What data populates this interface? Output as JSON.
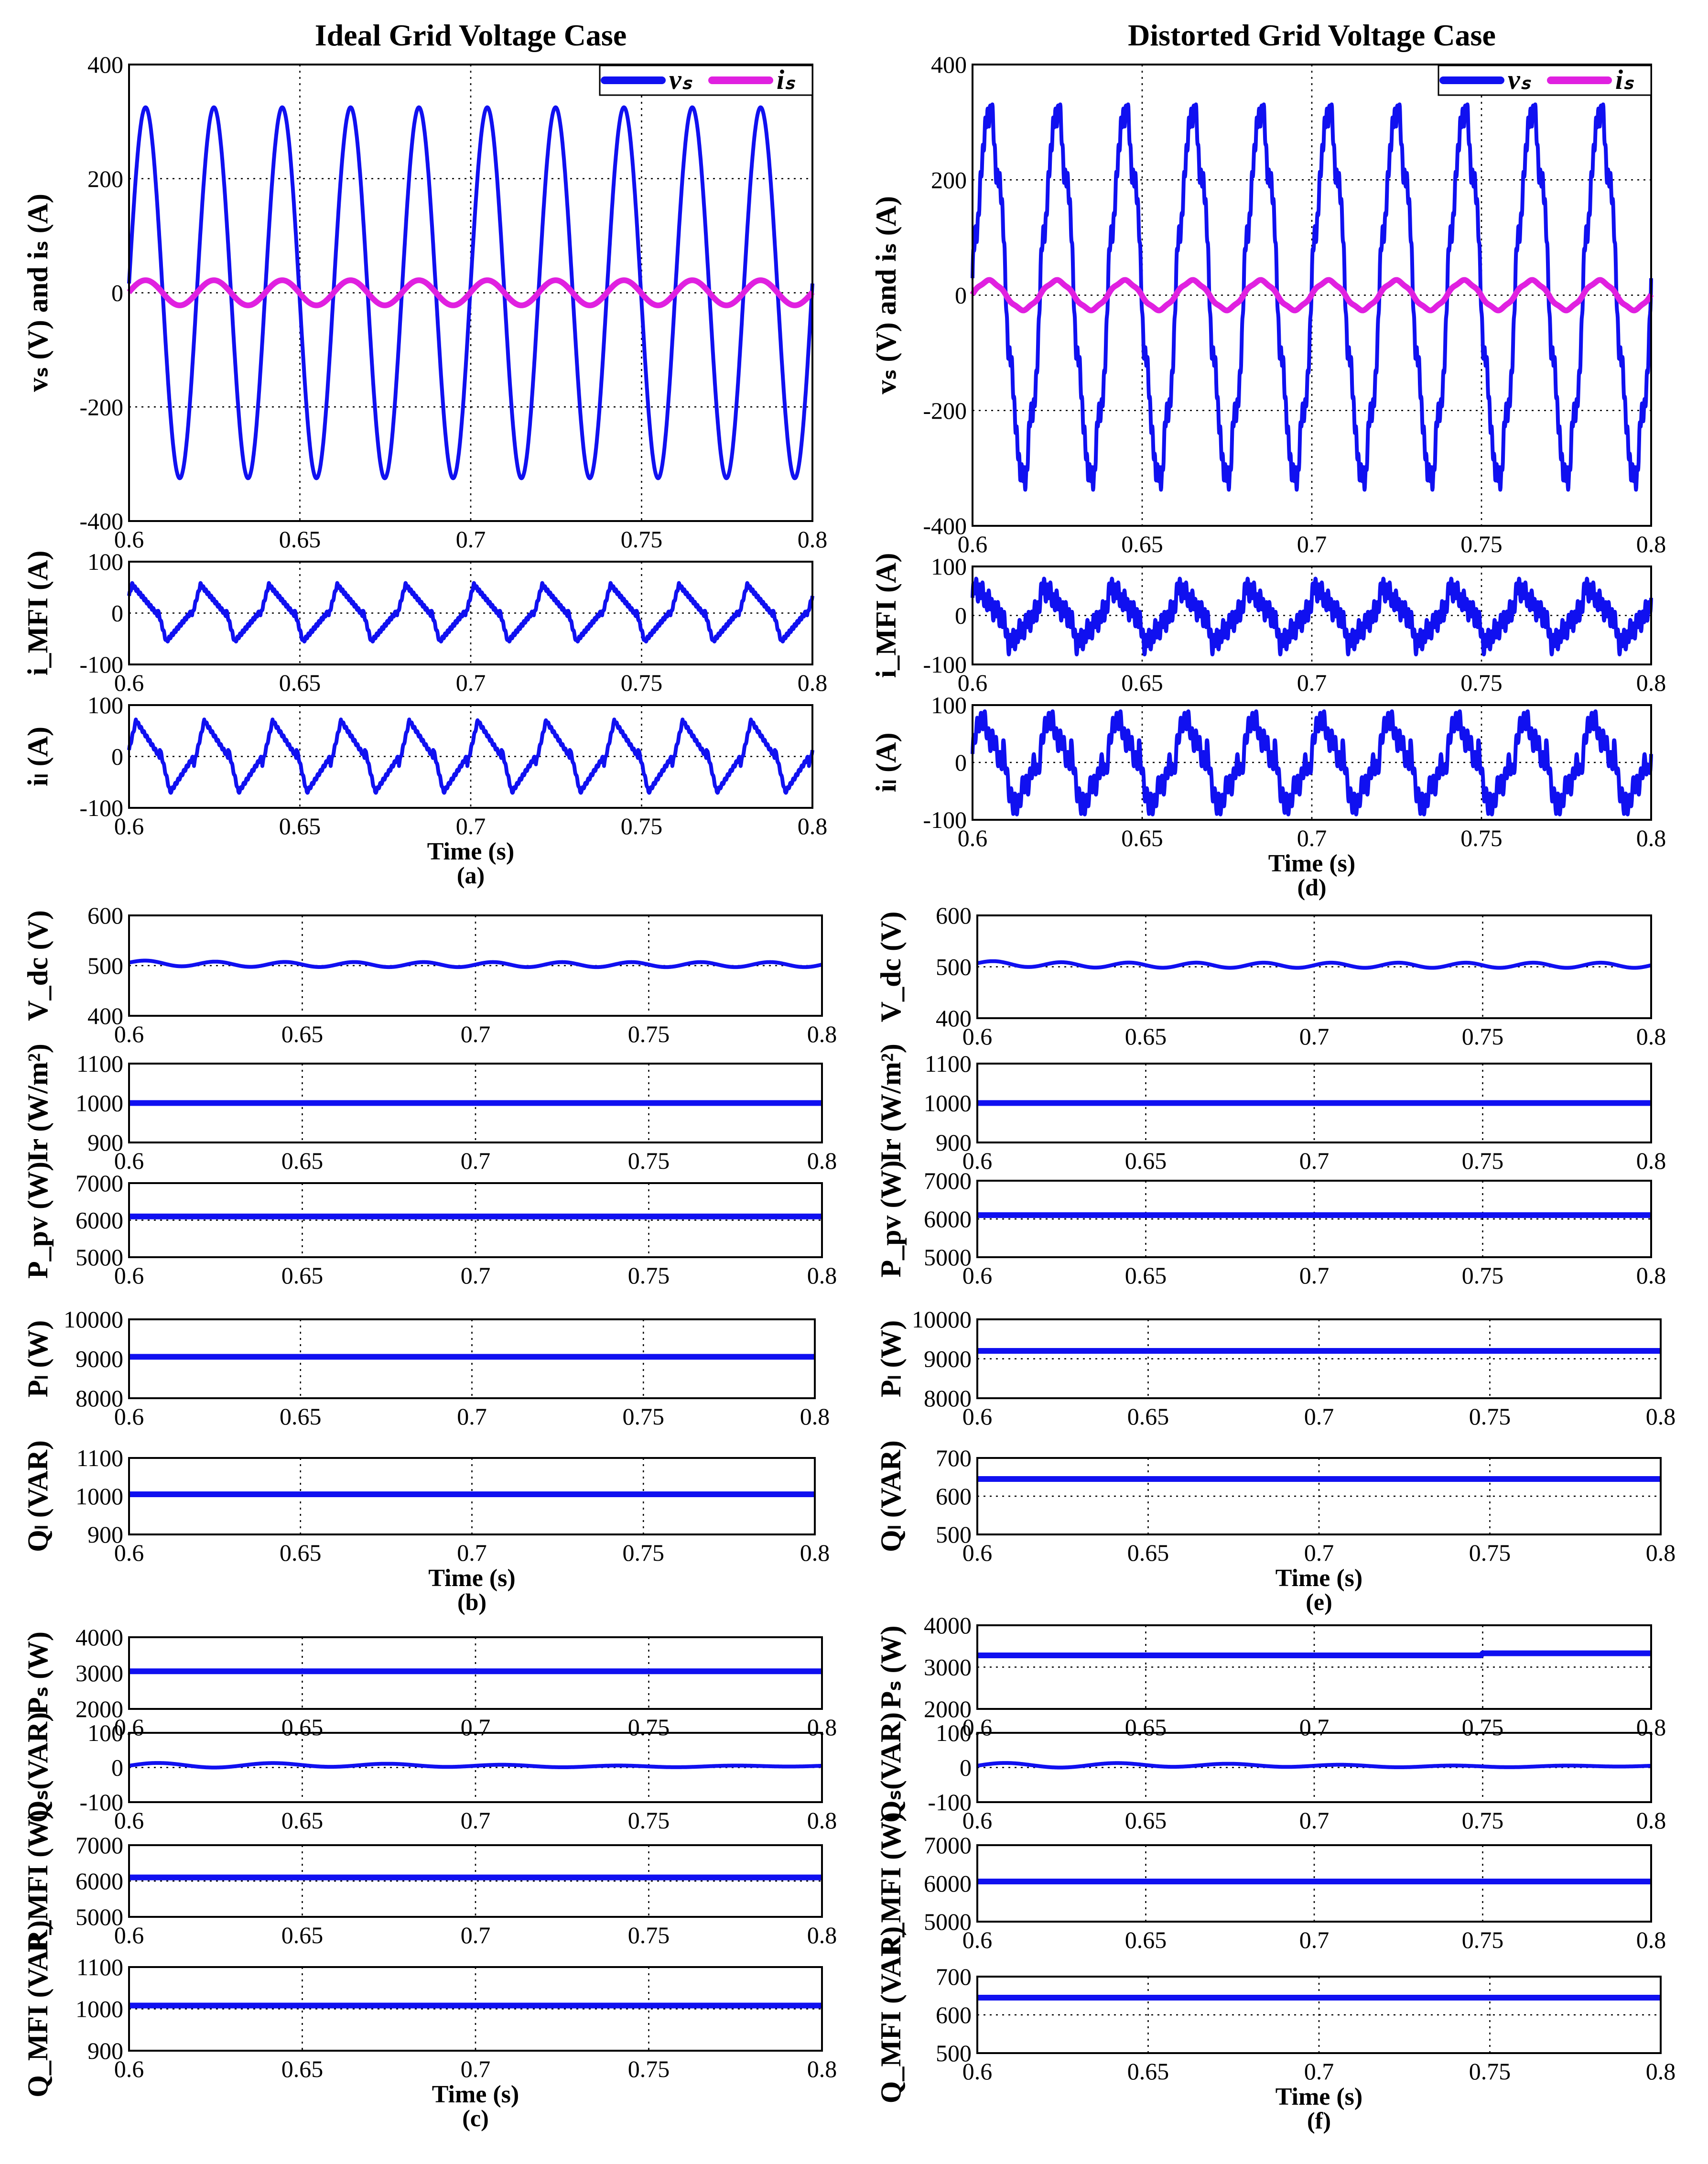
{
  "colors": {
    "vs": "#1010f0",
    "is": "#e020e0",
    "trace": "#1010f0",
    "axis": "#000000"
  },
  "chart_data": [
    {
      "id": "a1",
      "type": "line",
      "column": "left",
      "title": "Ideal Grid Voltage Case",
      "ylabel": "vₛ (V) and iₛ (A)",
      "xlabel": "",
      "caption": "",
      "xlim": [
        0.6,
        0.8
      ],
      "ylim": [
        -400,
        400
      ],
      "xticks": [
        "0.6",
        "0.65",
        "0.7",
        "0.75",
        "0.8"
      ],
      "yticks": [
        "400",
        "200",
        "0",
        "-200",
        "-400"
      ],
      "legend": [
        "vₛ",
        "iₛ"
      ],
      "series": [
        {
          "name": "vₛ",
          "kind": "sine",
          "amplitude": 325,
          "distortion": "none"
        },
        {
          "name": "iₛ",
          "kind": "sine",
          "amplitude": 22,
          "distortion": "none"
        }
      ]
    },
    {
      "id": "a2",
      "type": "line",
      "column": "left",
      "ylabel": "i_MFI (A)",
      "xlim": [
        0.6,
        0.8
      ],
      "ylim": [
        -100,
        100
      ],
      "xticks": [
        "0.6",
        "0.65",
        "0.7",
        "0.75",
        "0.8"
      ],
      "yticks": [
        "100",
        "0",
        "-100"
      ],
      "series": [
        {
          "name": "i_MFI",
          "kind": "inverter current",
          "amplitude": 65,
          "distortion": "low"
        }
      ]
    },
    {
      "id": "a3",
      "type": "line",
      "column": "left",
      "ylabel": "iₗ (A)",
      "xlabel": "Time (s)",
      "caption": "(a)",
      "xlim": [
        0.6,
        0.8
      ],
      "ylim": [
        -100,
        100
      ],
      "xticks": [
        "0.6",
        "0.65",
        "0.7",
        "0.75",
        "0.8"
      ],
      "yticks": [
        "100",
        "0",
        "-100"
      ],
      "series": [
        {
          "name": "iₗ",
          "kind": "load current",
          "amplitude": 78,
          "distortion": "low"
        }
      ]
    },
    {
      "id": "b1",
      "type": "line",
      "column": "left",
      "ylabel": "V_dc (V)",
      "xlim": [
        0.6,
        0.8
      ],
      "ylim": [
        400,
        600
      ],
      "xticks": [
        "0.6",
        "0.65",
        "0.7",
        "0.75",
        "0.8"
      ],
      "yticks": [
        "600",
        "500",
        "400"
      ],
      "series": [
        {
          "name": "V_dc",
          "kind": "ripple",
          "value": 502,
          "ripple": 5
        }
      ]
    },
    {
      "id": "b2",
      "type": "line",
      "column": "left",
      "ylabel": "Ir (W/m²)",
      "xlim": [
        0.6,
        0.8
      ],
      "ylim": [
        900,
        1100
      ],
      "xticks": [
        "0.6",
        "0.65",
        "0.7",
        "0.75",
        "0.8"
      ],
      "yticks": [
        "1100",
        "1000",
        "900"
      ],
      "series": [
        {
          "name": "Ir",
          "kind": "constant",
          "value": 1000
        }
      ]
    },
    {
      "id": "b3",
      "type": "line",
      "column": "left",
      "ylabel": "P_pv (W)",
      "xlim": [
        0.6,
        0.8
      ],
      "ylim": [
        5000,
        7000
      ],
      "xticks": [
        "0.6",
        "0.65",
        "0.7",
        "0.75",
        "0.8"
      ],
      "yticks": [
        "7000",
        "6000",
        "5000"
      ],
      "series": [
        {
          "name": "P_pv",
          "kind": "constant",
          "value": 6100
        }
      ]
    },
    {
      "id": "b4",
      "type": "line",
      "column": "left",
      "ylabel": "Pₗ (W)",
      "xlim": [
        0.6,
        0.8
      ],
      "ylim": [
        8000,
        10000
      ],
      "xticks": [
        "0.6",
        "0.65",
        "0.7",
        "0.75",
        "0.8"
      ],
      "yticks": [
        "10000",
        "9000",
        "8000"
      ],
      "series": [
        {
          "name": "Pₗ",
          "kind": "constant",
          "value": 9050
        }
      ]
    },
    {
      "id": "b5",
      "type": "line",
      "column": "left",
      "ylabel": "Qₗ (VAR)",
      "xlabel": "Time (s)",
      "caption": "(b)",
      "xlim": [
        0.6,
        0.8
      ],
      "ylim": [
        900,
        1100
      ],
      "xticks": [
        "0.6",
        "0.65",
        "0.7",
        "0.75",
        "0.8"
      ],
      "yticks": [
        "1100",
        "1000",
        "900"
      ],
      "series": [
        {
          "name": "Qₗ",
          "kind": "constant",
          "value": 1005
        }
      ]
    },
    {
      "id": "c1",
      "type": "line",
      "column": "left",
      "ylabel": "Pₛ (W)",
      "xlim": [
        0.6,
        0.8
      ],
      "ylim": [
        2000,
        4000
      ],
      "xticks": [
        "0.6",
        "0.65",
        "0.7",
        "0.75",
        "0.8"
      ],
      "yticks": [
        "4000",
        "3000",
        "2000"
      ],
      "series": [
        {
          "name": "Pₛ",
          "kind": "constant",
          "value": 3050
        }
      ]
    },
    {
      "id": "c2",
      "type": "line",
      "column": "left",
      "ylabel": "Qₛ(VAR)",
      "xlim": [
        0.6,
        0.8
      ],
      "ylim": [
        -100,
        100
      ],
      "xticks": [
        "0.6",
        "0.65",
        "0.7",
        "0.75",
        "0.8"
      ],
      "yticks": [
        "100",
        "0",
        "-100"
      ],
      "series": [
        {
          "name": "Qₛ",
          "kind": "wavy",
          "value": 5,
          "ripple": 8
        }
      ]
    },
    {
      "id": "c3",
      "type": "line",
      "column": "left",
      "ylabel": "P_MFI (W)",
      "xlim": [
        0.6,
        0.8
      ],
      "ylim": [
        5000,
        7000
      ],
      "xticks": [
        "0.6",
        "0.65",
        "0.7",
        "0.75",
        "0.8"
      ],
      "yticks": [
        "7000",
        "6000",
        "5000"
      ],
      "series": [
        {
          "name": "P_MFI",
          "kind": "constant",
          "value": 6100
        }
      ]
    },
    {
      "id": "c4",
      "type": "line",
      "column": "left",
      "ylabel": "Q_MFI (VAR)",
      "xlabel": "Time (s)",
      "caption": "(c)",
      "xlim": [
        0.6,
        0.8
      ],
      "ylim": [
        900,
        1100
      ],
      "xticks": [
        "0.6",
        "0.65",
        "0.7",
        "0.75",
        "0.8"
      ],
      "yticks": [
        "1100",
        "1000",
        "900"
      ],
      "series": [
        {
          "name": "Q_MFI",
          "kind": "constant",
          "value": 1008
        }
      ]
    },
    {
      "id": "d1",
      "type": "line",
      "column": "right",
      "title": "Distorted Grid Voltage Case",
      "ylabel": "vₛ (V) and iₛ (A)",
      "xlim": [
        0.6,
        0.8
      ],
      "ylim": [
        -400,
        400
      ],
      "xticks": [
        "0.6",
        "0.65",
        "0.7",
        "0.75",
        "0.8"
      ],
      "yticks": [
        "400",
        "200",
        "0",
        "-200",
        "-400"
      ],
      "legend": [
        "vₛ",
        "iₛ"
      ],
      "series": [
        {
          "name": "vₛ",
          "kind": "distorted sine",
          "amplitude": 320,
          "distortion": "high"
        },
        {
          "name": "iₛ",
          "kind": "sine",
          "amplitude": 25,
          "distortion": "low"
        }
      ]
    },
    {
      "id": "d2",
      "type": "line",
      "column": "right",
      "ylabel": "i_MFI (A)",
      "xlim": [
        0.6,
        0.8
      ],
      "ylim": [
        -100,
        100
      ],
      "xticks": [
        "0.6",
        "0.65",
        "0.7",
        "0.75",
        "0.8"
      ],
      "yticks": [
        "100",
        "0",
        "-100"
      ],
      "series": [
        {
          "name": "i_MFI",
          "kind": "inverter current",
          "amplitude": 70,
          "distortion": "high"
        }
      ]
    },
    {
      "id": "d3",
      "type": "line",
      "column": "right",
      "ylabel": "iₗ (A)",
      "xlabel": "Time (s)",
      "caption": "(d)",
      "xlim": [
        0.6,
        0.8
      ],
      "ylim": [
        -100,
        100
      ],
      "xticks": [
        "0.6",
        "0.65",
        "0.7",
        "0.75",
        "0.8"
      ],
      "yticks": [
        "100",
        "0",
        "-100"
      ],
      "series": [
        {
          "name": "iₗ",
          "kind": "load current",
          "amplitude": 92,
          "distortion": "high"
        }
      ]
    },
    {
      "id": "e1",
      "type": "line",
      "column": "right",
      "ylabel": "V_dc (V)",
      "xlim": [
        0.6,
        0.8
      ],
      "ylim": [
        400,
        600
      ],
      "xticks": [
        "0.6",
        "0.65",
        "0.7",
        "0.75",
        "0.8"
      ],
      "yticks": [
        "600",
        "500",
        "400"
      ],
      "series": [
        {
          "name": "V_dc",
          "kind": "ripple",
          "value": 503,
          "ripple": 5
        }
      ]
    },
    {
      "id": "e2",
      "type": "line",
      "column": "right",
      "ylabel": "Ir (W/m²)",
      "xlim": [
        0.6,
        0.8
      ],
      "ylim": [
        900,
        1100
      ],
      "xticks": [
        "0.6",
        "0.65",
        "0.7",
        "0.75",
        "0.8"
      ],
      "yticks": [
        "1100",
        "1000",
        "900"
      ],
      "series": [
        {
          "name": "Ir",
          "kind": "constant",
          "value": 1000
        }
      ]
    },
    {
      "id": "e3",
      "type": "line",
      "column": "right",
      "ylabel": "P_pv (W)",
      "xlim": [
        0.6,
        0.8
      ],
      "ylim": [
        5000,
        7000
      ],
      "xticks": [
        "0.6",
        "0.65",
        "0.7",
        "0.75",
        "0.8"
      ],
      "yticks": [
        "7000",
        "6000",
        "5000"
      ],
      "series": [
        {
          "name": "P_pv",
          "kind": "constant",
          "value": 6100
        }
      ]
    },
    {
      "id": "e4",
      "type": "line",
      "column": "right",
      "ylabel": "Pₗ (W)",
      "xlim": [
        0.6,
        0.8
      ],
      "ylim": [
        8000,
        10000
      ],
      "xticks": [
        "0.6",
        "0.65",
        "0.7",
        "0.75",
        "0.8"
      ],
      "yticks": [
        "10000",
        "9000",
        "8000"
      ],
      "series": [
        {
          "name": "Pₗ",
          "kind": "constant",
          "value": 9200
        }
      ]
    },
    {
      "id": "e5",
      "type": "line",
      "column": "right",
      "ylabel": "Qₗ (VAR)",
      "xlabel": "Time (s)",
      "caption": "(e)",
      "xlim": [
        0.6,
        0.8
      ],
      "ylim": [
        500,
        700
      ],
      "xticks": [
        "0.6",
        "0.65",
        "0.7",
        "0.75",
        "0.8"
      ],
      "yticks": [
        "700",
        "600",
        "500"
      ],
      "series": [
        {
          "name": "Qₗ",
          "kind": "constant",
          "value": 645
        }
      ]
    },
    {
      "id": "f1",
      "type": "line",
      "column": "right",
      "ylabel": "Pₛ (W)",
      "xlim": [
        0.6,
        0.8
      ],
      "ylim": [
        2000,
        4000
      ],
      "xticks": [
        "0.6",
        "0.65",
        "0.7",
        "0.75",
        "0.8"
      ],
      "yticks": [
        "4000",
        "3000",
        "2000"
      ],
      "series": [
        {
          "name": "Pₛ",
          "kind": "step",
          "values": [
            3280,
            3330
          ],
          "step_at": 0.75
        }
      ]
    },
    {
      "id": "f2",
      "type": "line",
      "column": "right",
      "ylabel": "Qₛ(VAR)",
      "xlim": [
        0.6,
        0.8
      ],
      "ylim": [
        -100,
        100
      ],
      "xticks": [
        "0.6",
        "0.65",
        "0.7",
        "0.75",
        "0.8"
      ],
      "yticks": [
        "100",
        "0",
        "-100"
      ],
      "series": [
        {
          "name": "Qₛ",
          "kind": "wavy",
          "value": 5,
          "ripple": 8
        }
      ]
    },
    {
      "id": "f3",
      "type": "line",
      "column": "right",
      "ylabel": "P_MFI (W)",
      "xlim": [
        0.6,
        0.8
      ],
      "ylim": [
        5000,
        7000
      ],
      "xticks": [
        "0.6",
        "0.65",
        "0.7",
        "0.75",
        "0.8"
      ],
      "yticks": [
        "7000",
        "6000",
        "5000"
      ],
      "series": [
        {
          "name": "P_MFI",
          "kind": "constant",
          "value": 6050
        }
      ]
    },
    {
      "id": "f4",
      "type": "line",
      "column": "right",
      "ylabel": "Q_MFI (VAR)",
      "xlabel": "Time (s)",
      "caption": "(f)",
      "xlim": [
        0.6,
        0.8
      ],
      "ylim": [
        500,
        700
      ],
      "xticks": [
        "0.6",
        "0.65",
        "0.7",
        "0.75",
        "0.8"
      ],
      "yticks": [
        "700",
        "600",
        "500"
      ],
      "series": [
        {
          "name": "Q_MFI",
          "kind": "constant",
          "value": 645
        }
      ]
    }
  ]
}
